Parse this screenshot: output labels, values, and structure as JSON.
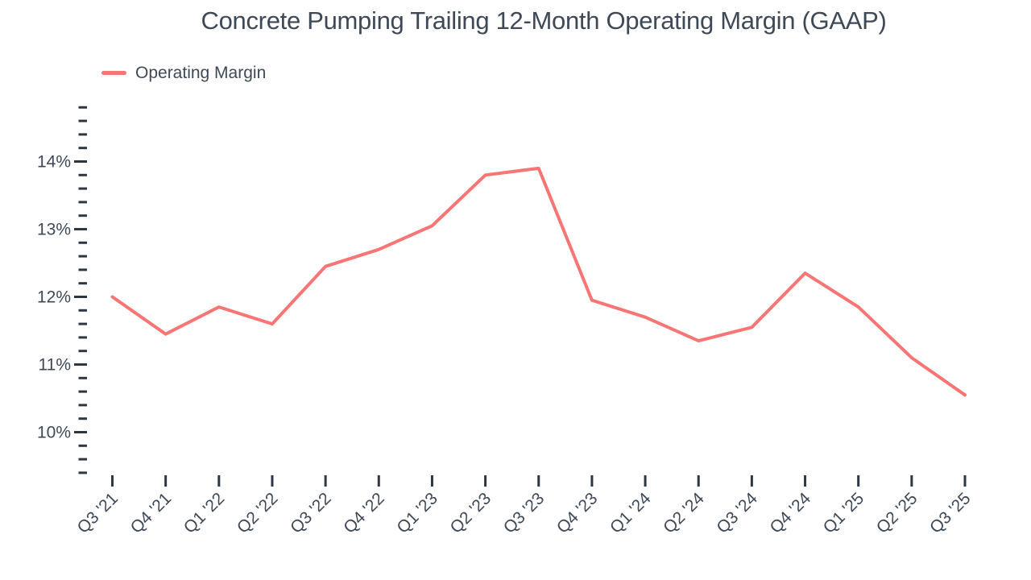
{
  "page": {
    "title": "Concrete Pumping Trailing 12-Month Operating Margin (GAAP)"
  },
  "legend": {
    "label": "Operating Margin"
  },
  "colors": {
    "line": "#f87575",
    "text": "#3e4957",
    "tick": "#2d3643",
    "background": "#ffffff"
  },
  "chart_data": {
    "type": "line",
    "title": "Concrete Pumping Trailing 12-Month Operating Margin (GAAP)",
    "categories": [
      "Q3 '21",
      "Q4 '21",
      "Q1 '22",
      "Q2 '22",
      "Q3 '22",
      "Q4 '22",
      "Q1 '23",
      "Q2 '23",
      "Q3 '23",
      "Q4 '23",
      "Q1 '24",
      "Q2 '24",
      "Q3 '24",
      "Q4 '24",
      "Q1 '25",
      "Q2 '25",
      "Q3 '25"
    ],
    "series": [
      {
        "name": "Operating Margin",
        "color": "#f87575",
        "values": [
          12.0,
          11.45,
          11.85,
          11.6,
          12.45,
          12.7,
          13.05,
          13.8,
          13.9,
          11.95,
          11.7,
          11.35,
          11.55,
          12.35,
          11.85,
          11.1,
          10.55
        ]
      }
    ],
    "xlabel": "",
    "ylabel": "",
    "y_axis": {
      "unit": "%",
      "min": 9.4,
      "max": 14.8,
      "minor_step": 0.2,
      "major_ticks": [
        10,
        11,
        12,
        13,
        14
      ],
      "major_tick_label_format": "{value}%"
    },
    "ylim": [
      9.4,
      14.8
    ],
    "grid": false,
    "legend_position": "top-left"
  }
}
